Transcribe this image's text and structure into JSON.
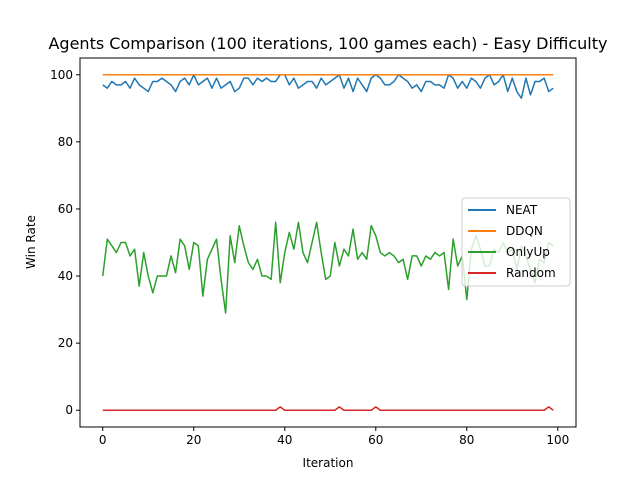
{
  "chart_data": {
    "type": "line",
    "title": "Agents Comparison (100 iterations, 100 games each) - Easy Difficulty",
    "xlabel": "Iteration",
    "ylabel": "Win Rate",
    "xlim": [
      -5,
      104
    ],
    "ylim": [
      -5,
      105
    ],
    "xticks": [
      0,
      20,
      40,
      60,
      80,
      100
    ],
    "yticks": [
      0,
      20,
      40,
      60,
      80,
      100
    ],
    "legend_position": "center-right",
    "x": [
      0,
      1,
      2,
      3,
      4,
      5,
      6,
      7,
      8,
      9,
      10,
      11,
      12,
      13,
      14,
      15,
      16,
      17,
      18,
      19,
      20,
      21,
      22,
      23,
      24,
      25,
      26,
      27,
      28,
      29,
      30,
      31,
      32,
      33,
      34,
      35,
      36,
      37,
      38,
      39,
      40,
      41,
      42,
      43,
      44,
      45,
      46,
      47,
      48,
      49,
      50,
      51,
      52,
      53,
      54,
      55,
      56,
      57,
      58,
      59,
      60,
      61,
      62,
      63,
      64,
      65,
      66,
      67,
      68,
      69,
      70,
      71,
      72,
      73,
      74,
      75,
      76,
      77,
      78,
      79,
      80,
      81,
      82,
      83,
      84,
      85,
      86,
      87,
      88,
      89,
      90,
      91,
      92,
      93,
      94,
      95,
      96,
      97,
      98,
      99
    ],
    "series": [
      {
        "name": "NEAT",
        "color": "#1f77b4",
        "values": [
          97,
          96,
          98,
          97,
          97,
          98,
          96,
          99,
          97,
          96,
          95,
          98,
          98,
          99,
          98,
          97,
          95,
          98,
          99,
          97,
          100,
          97,
          98,
          99,
          96,
          99,
          96,
          97,
          98,
          95,
          96,
          99,
          99,
          97,
          99,
          98,
          99,
          98,
          98,
          100,
          100,
          97,
          99,
          96,
          97,
          98,
          98,
          96,
          99,
          97,
          98,
          99,
          100,
          96,
          99,
          95,
          99,
          97,
          95,
          99,
          100,
          99,
          97,
          97,
          98,
          100,
          99,
          98,
          96,
          97,
          95,
          98,
          98,
          97,
          97,
          96,
          100,
          99,
          96,
          98,
          96,
          99,
          98,
          96,
          99,
          100,
          97,
          98,
          100,
          95,
          99,
          95,
          93,
          99,
          94,
          98,
          98,
          99,
          95,
          96
        ]
      },
      {
        "name": "DDQN",
        "color": "#ff7f0e",
        "values": [
          100,
          100,
          100,
          100,
          100,
          100,
          100,
          100,
          100,
          100,
          100,
          100,
          100,
          100,
          100,
          100,
          100,
          100,
          100,
          100,
          100,
          100,
          100,
          100,
          100,
          100,
          100,
          100,
          100,
          100,
          100,
          100,
          100,
          100,
          100,
          100,
          100,
          100,
          100,
          100,
          100,
          100,
          100,
          100,
          100,
          100,
          100,
          100,
          100,
          100,
          100,
          100,
          100,
          100,
          100,
          100,
          100,
          100,
          100,
          100,
          100,
          100,
          100,
          100,
          100,
          100,
          100,
          100,
          100,
          100,
          100,
          100,
          100,
          100,
          100,
          100,
          100,
          100,
          100,
          100,
          100,
          100,
          100,
          100,
          100,
          100,
          100,
          100,
          100,
          100,
          100,
          100,
          100,
          100,
          100,
          100,
          100,
          100,
          100,
          100
        ]
      },
      {
        "name": "OnlyUp",
        "color": "#2ca02c",
        "values": [
          40,
          51,
          49,
          47,
          50,
          50,
          46,
          48,
          37,
          47,
          40,
          35,
          40,
          40,
          40,
          46,
          41,
          51,
          49,
          42,
          50,
          49,
          34,
          45,
          48,
          51,
          39,
          29,
          52,
          44,
          55,
          49,
          44,
          42,
          45,
          40,
          40,
          39,
          56,
          38,
          47,
          53,
          48,
          56,
          47,
          44,
          50,
          56,
          47,
          39,
          40,
          50,
          43,
          48,
          46,
          54,
          45,
          47,
          45,
          55,
          52,
          47,
          46,
          47,
          46,
          44,
          45,
          39,
          46,
          46,
          43,
          46,
          45,
          47,
          46,
          47,
          36,
          51,
          43,
          46,
          33,
          48,
          52,
          48,
          43,
          43,
          48,
          47,
          50,
          47,
          48,
          42,
          49,
          46,
          42,
          38,
          45,
          44,
          50,
          49
        ]
      },
      {
        "name": "Random",
        "color": "#d62728",
        "values": [
          0,
          0,
          0,
          0,
          0,
          0,
          0,
          0,
          0,
          0,
          0,
          0,
          0,
          0,
          0,
          0,
          0,
          0,
          0,
          0,
          0,
          0,
          0,
          0,
          0,
          0,
          0,
          0,
          0,
          0,
          0,
          0,
          0,
          0,
          0,
          0,
          0,
          0,
          0,
          1,
          0,
          0,
          0,
          0,
          0,
          0,
          0,
          0,
          0,
          0,
          0,
          0,
          1,
          0,
          0,
          0,
          0,
          0,
          0,
          0,
          1,
          0,
          0,
          0,
          0,
          0,
          0,
          0,
          0,
          0,
          0,
          0,
          0,
          0,
          0,
          0,
          0,
          0,
          0,
          0,
          0,
          0,
          0,
          0,
          0,
          0,
          0,
          0,
          0,
          0,
          0,
          0,
          0,
          0,
          0,
          0,
          0,
          0,
          1,
          0
        ]
      }
    ]
  }
}
